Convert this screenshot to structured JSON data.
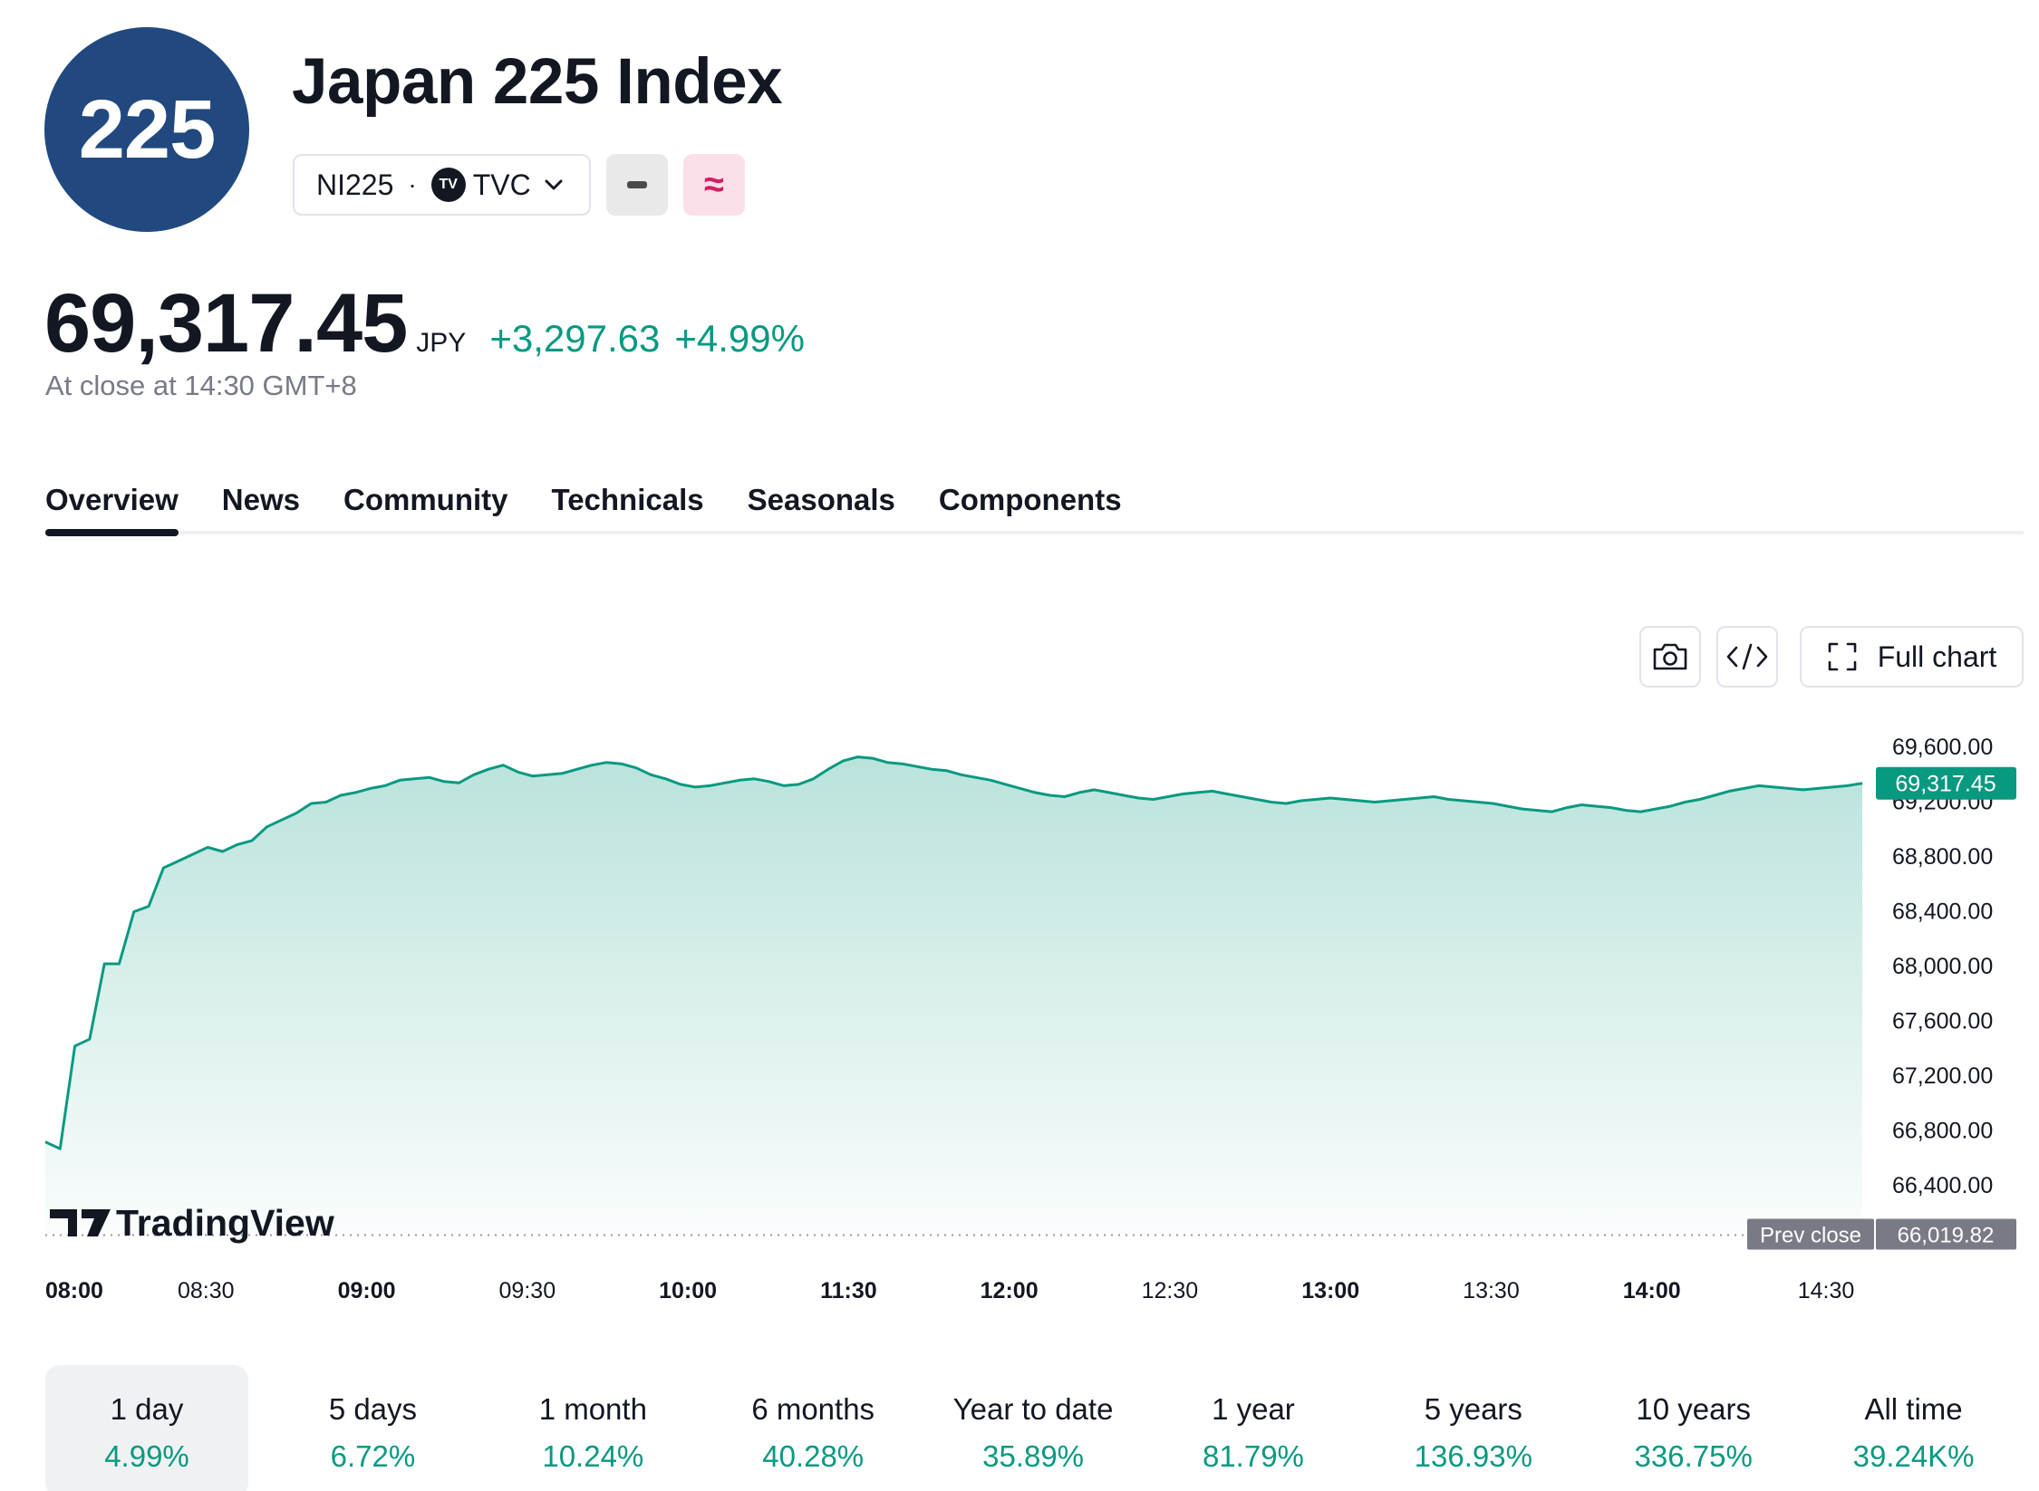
{
  "header": {
    "logo_text": "225",
    "title": "Japan 225 Index",
    "symbol": "NI225",
    "exchange_badge": "TV",
    "exchange": "TVC",
    "pink_icon": "≈"
  },
  "quote": {
    "price": "69,317.45",
    "currency": "JPY",
    "change": "+3,297.63",
    "change_pct": "+4.99%",
    "close_note": "At close at 14:30 GMT+8"
  },
  "tabs": [
    {
      "label": "Overview",
      "active": true
    },
    {
      "label": "News"
    },
    {
      "label": "Community"
    },
    {
      "label": "Technicals"
    },
    {
      "label": "Seasonals"
    },
    {
      "label": "Components"
    }
  ],
  "chart_buttons": {
    "camera_icon": "camera-icon",
    "code_icon": "code-icon",
    "full_chart_label": "Full chart"
  },
  "chart_data": {
    "type": "area",
    "x_ticks": [
      {
        "label": "08:00",
        "bold": true
      },
      {
        "label": "08:30",
        "bold": false
      },
      {
        "label": "09:00",
        "bold": true
      },
      {
        "label": "09:30",
        "bold": false
      },
      {
        "label": "10:00",
        "bold": true
      },
      {
        "label": "11:30",
        "bold": true
      },
      {
        "label": "12:00",
        "bold": true
      },
      {
        "label": "12:30",
        "bold": false
      },
      {
        "label": "13:00",
        "bold": true
      },
      {
        "label": "13:30",
        "bold": false
      },
      {
        "label": "14:00",
        "bold": true
      },
      {
        "label": "14:30",
        "bold": false
      }
    ],
    "y_ticks": [
      "69,600.00",
      "69,200.00",
      "68,800.00",
      "68,400.00",
      "68,000.00",
      "67,600.00",
      "67,200.00",
      "66,800.00",
      "66,400.00"
    ],
    "y_tick_values": [
      69600,
      69200,
      68800,
      68400,
      68000,
      67600,
      67200,
      66800,
      66400
    ],
    "ylim": [
      66000,
      69600
    ],
    "series": [
      {
        "values": [
          66700,
          66650,
          67400,
          67450,
          68000,
          68000,
          68380,
          68420,
          68700,
          68750,
          68800,
          68850,
          68820,
          68870,
          68900,
          69000,
          69050,
          69100,
          69170,
          69180,
          69230,
          69250,
          69280,
          69300,
          69340,
          69350,
          69360,
          69330,
          69320,
          69380,
          69420,
          69450,
          69400,
          69370,
          69380,
          69390,
          69420,
          69450,
          69470,
          69460,
          69430,
          69380,
          69350,
          69310,
          69290,
          69300,
          69320,
          69340,
          69350,
          69330,
          69300,
          69310,
          69350,
          69420,
          69480,
          69510,
          69500,
          69470,
          69460,
          69440,
          69420,
          69410,
          69380,
          69360,
          69340,
          69310,
          69280,
          69250,
          69230,
          69220,
          69250,
          69270,
          69250,
          69230,
          69210,
          69200,
          69220,
          69240,
          69250,
          69260,
          69240,
          69220,
          69200,
          69180,
          69170,
          69190,
          69200,
          69210,
          69200,
          69190,
          69180,
          69190,
          69200,
          69210,
          69220,
          69200,
          69190,
          69180,
          69170,
          69150,
          69130,
          69120,
          69110,
          69140,
          69160,
          69150,
          69140,
          69120,
          69110,
          69130,
          69150,
          69180,
          69200,
          69230,
          69260,
          69280,
          69300,
          69290,
          69280,
          69270,
          69280,
          69290,
          69300,
          69317.45
        ],
        "color": "#089981"
      }
    ],
    "last_price_label": "69,317.45",
    "last_price": 69317.45,
    "prev_close_label": "Prev close",
    "prev_close_value_label": "66,019.82",
    "prev_close": 66019.82,
    "watermark": "TradingView",
    "grid": false
  },
  "periods": [
    {
      "label": "1 day",
      "value": "4.99%",
      "active": true
    },
    {
      "label": "5 days",
      "value": "6.72%"
    },
    {
      "label": "1 month",
      "value": "10.24%"
    },
    {
      "label": "6 months",
      "value": "40.28%"
    },
    {
      "label": "Year to date",
      "value": "35.89%"
    },
    {
      "label": "1 year",
      "value": "81.79%"
    },
    {
      "label": "5 years",
      "value": "136.93%"
    },
    {
      "label": "10 years",
      "value": "336.75%"
    },
    {
      "label": "All time",
      "value": "39.24K%"
    }
  ],
  "colors": {
    "accent_green": "#089981",
    "logo_blue": "#21497f",
    "pink_bg": "#fbe0ea",
    "pink_fg": "#d61d60"
  }
}
